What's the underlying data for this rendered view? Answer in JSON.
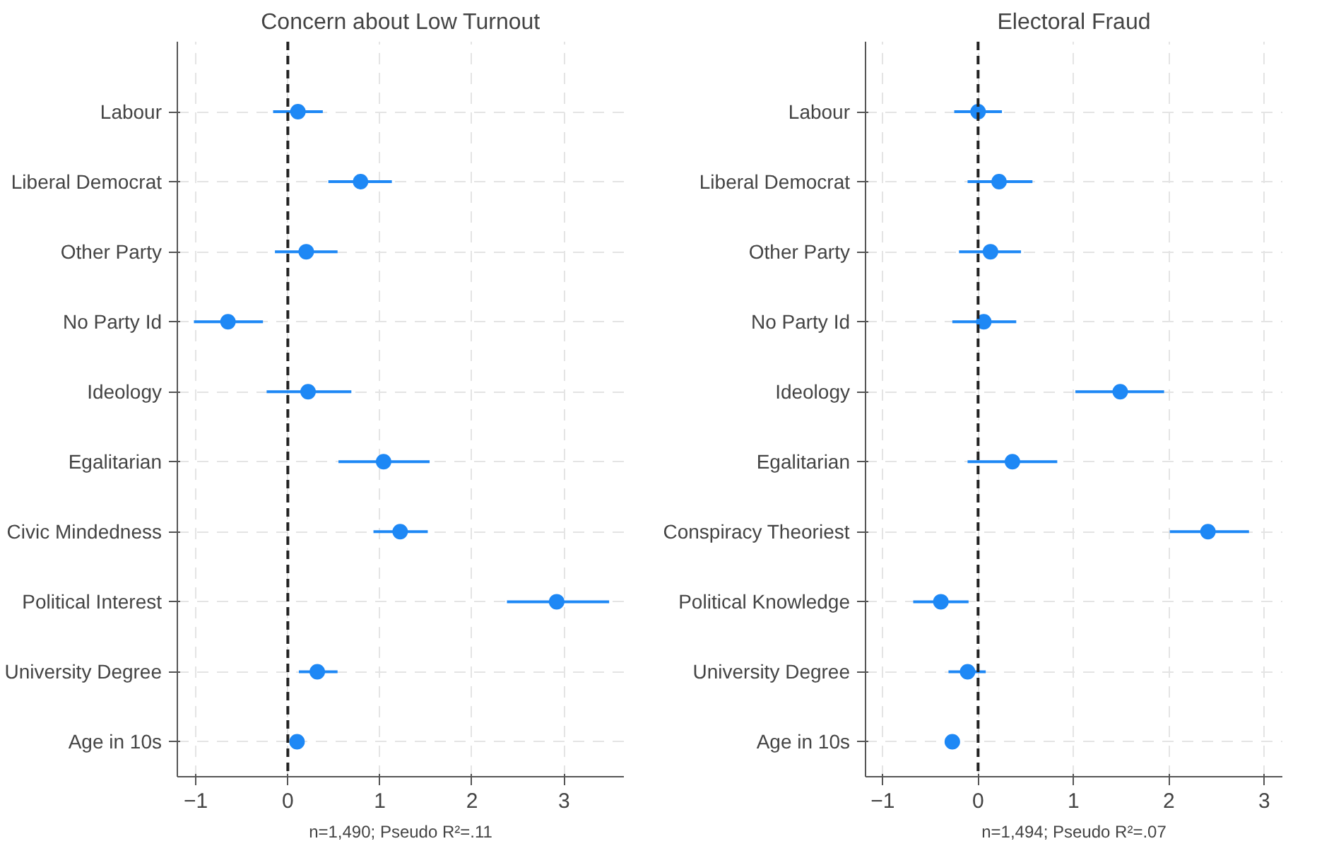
{
  "chart_data": [
    {
      "type": "scatter",
      "orientation": "horizontal",
      "title": "Concern about Low Turnout",
      "categories": [
        "Labour",
        "Liberal Democrat",
        "Other Party",
        "No Party Id",
        "Ideology",
        "Egalitarian",
        "Civic Mindedness",
        "Political Interest",
        "University Degree",
        "Age in 10s"
      ],
      "series": [
        {
          "color": "#1e88f5",
          "values": [
            0.11,
            0.79,
            0.2,
            -0.65,
            0.22,
            1.04,
            1.22,
            2.92,
            0.32,
            0.1
          ],
          "errors": [
            [
              -0.16,
              0.38
            ],
            [
              0.44,
              1.13
            ],
            [
              -0.14,
              0.54
            ],
            [
              -1.02,
              -0.27
            ],
            [
              -0.23,
              0.69
            ],
            [
              0.55,
              1.54
            ],
            [
              0.93,
              1.52
            ],
            [
              2.38,
              3.49
            ],
            [
              0.12,
              0.54
            ],
            [
              0.07,
              0.13
            ]
          ]
        }
      ],
      "xlim": [
        -1.2,
        3.65
      ],
      "xticks": [
        -1,
        0,
        1,
        2,
        3
      ],
      "grid": true,
      "marker": "circle",
      "ref_lines": [
        {
          "axis": "x",
          "value": 0,
          "line_style": "dashed",
          "color": "#222222"
        }
      ],
      "annotations": [
        "n=1,490; Pseudo R²=.11"
      ]
    },
    {
      "type": "scatter",
      "orientation": "horizontal",
      "title": "Electoral Fraud",
      "categories": [
        "Labour",
        "Liberal Democrat",
        "Other Party",
        "No Party Id",
        "Ideology",
        "Egalitarian",
        "Conspiracy Theoriest",
        "Political Knowledge",
        "University Degree",
        "Age in 10s"
      ],
      "series": [
        {
          "color": "#1e88f5",
          "values": [
            0.0,
            0.22,
            0.13,
            0.06,
            1.49,
            0.36,
            2.41,
            -0.39,
            -0.11,
            -0.27
          ],
          "errors": [
            [
              -0.25,
              0.25
            ],
            [
              -0.11,
              0.57
            ],
            [
              -0.2,
              0.45
            ],
            [
              -0.27,
              0.4
            ],
            [
              1.02,
              1.95
            ],
            [
              -0.11,
              0.83
            ],
            [
              2.01,
              2.84
            ],
            [
              -0.68,
              -0.1
            ],
            [
              -0.31,
              0.08
            ],
            [
              -0.3,
              -0.24
            ]
          ]
        }
      ],
      "xlim": [
        -1.18,
        3.19
      ],
      "xticks": [
        -1,
        0,
        1,
        2,
        3
      ],
      "grid": true,
      "marker": "circle",
      "ref_lines": [
        {
          "axis": "x",
          "value": 0,
          "line_style": "dashed",
          "color": "#222222"
        }
      ],
      "annotations": [
        "n=1,494; Pseudo R²=.07"
      ]
    }
  ]
}
